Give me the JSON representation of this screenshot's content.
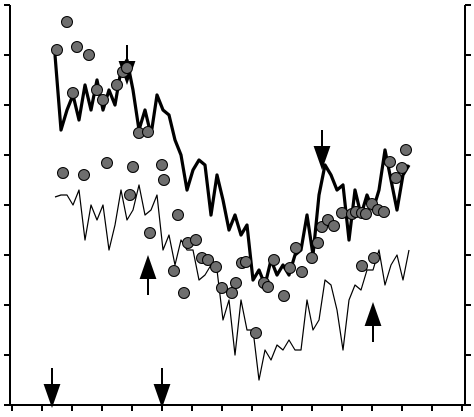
{
  "chart_data": {
    "type": "line",
    "xlim": [
      0,
      455
    ],
    "ylim": [
      0,
      400
    ],
    "xticks": [
      0,
      30,
      60,
      90,
      120,
      150,
      180,
      210,
      240,
      270,
      300,
      330,
      360,
      390,
      420,
      450
    ],
    "yticks": [
      0,
      50,
      100,
      150,
      200,
      250,
      300,
      350,
      400
    ],
    "x": [
      43,
      49,
      55,
      61,
      67,
      73,
      79,
      85,
      91,
      97,
      103,
      109,
      115,
      121,
      127,
      133,
      139,
      145,
      151,
      157,
      163,
      169,
      175,
      181,
      187,
      193,
      199,
      205,
      211,
      217,
      223,
      229,
      235,
      241,
      247,
      253,
      259,
      265,
      271,
      277,
      283,
      289,
      295,
      301,
      307,
      313,
      319,
      325,
      331,
      337,
      343,
      349,
      355,
      361,
      367,
      373,
      379,
      385,
      391,
      397
    ],
    "series": [
      {
        "type": "line",
        "color": "#000000",
        "width": 3.2,
        "values": [
          350,
          275,
          295,
          310,
          285,
          320,
          295,
          325,
          295,
          315,
          300,
          335,
          345,
          315,
          275,
          295,
          270,
          310,
          295,
          290,
          265,
          250,
          215,
          235,
          245,
          240,
          190,
          230,
          205,
          175,
          190,
          170,
          180,
          125,
          135,
          120,
          145,
          130,
          140,
          130,
          150,
          155,
          190,
          150,
          210,
          240,
          230,
          215,
          220,
          165,
          215,
          190,
          210,
          195,
          215,
          255,
          225,
          195,
          230,
          240
        ]
      },
      {
        "type": "line",
        "color": "#000000",
        "width": 1.2,
        "values": [
          208,
          210,
          210,
          200,
          215,
          165,
          200,
          185,
          200,
          155,
          180,
          215,
          185,
          195,
          220,
          190,
          195,
          210,
          155,
          170,
          140,
          165,
          155,
          155,
          125,
          130,
          140,
          135,
          85,
          105,
          50,
          105,
          75,
          75,
          25,
          55,
          45,
          60,
          55,
          65,
          55,
          55,
          105,
          75,
          85,
          125,
          120,
          95,
          55,
          105,
          120,
          115,
          135,
          135,
          155,
          120,
          140,
          150,
          125,
          155
        ]
      },
      {
        "type": "scatter",
        "color": "#6e6e6e",
        "x": [
          45,
          55,
          65,
          61,
          77,
          85,
          91,
          105,
          111,
          115,
          51,
          72,
          95,
          121,
          127,
          136,
          118,
          150,
          152,
          138,
          166,
          176,
          184,
          190,
          196,
          204,
          162,
          172,
          210,
          220,
          224,
          230,
          234,
          244,
          252,
          262,
          256,
          272,
          278,
          284,
          290,
          300,
          306,
          310,
          316,
          322,
          330,
          340,
          344,
          350,
          354,
          360,
          366,
          372,
          378,
          384,
          390,
          394,
          350,
          362
        ],
        "values": [
          355,
          383,
          358,
          312,
          350,
          315,
          305,
          320,
          333,
          337,
          232,
          230,
          242,
          238,
          272,
          273,
          210,
          240,
          225,
          172,
          190,
          162,
          165,
          147,
          145,
          138,
          134,
          112,
          117,
          112,
          122,
          142,
          143,
          72,
          122,
          145,
          118,
          109,
          137,
          157,
          133,
          147,
          162,
          178,
          185,
          179,
          192,
          191,
          193,
          192,
          191,
          201,
          195,
          193,
          243,
          227,
          237,
          255,
          139,
          147
        ]
      }
    ]
  }
}
